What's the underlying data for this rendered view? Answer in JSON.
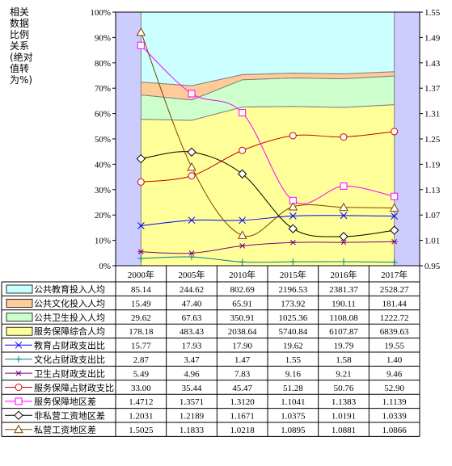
{
  "ylabel_left": "相关数据比例关系(绝对值转为%)",
  "chart_data": {
    "type": "area",
    "categories": [
      "2000年",
      "2005年",
      "2010年",
      "2015年",
      "2016年",
      "2017年"
    ],
    "left_axis": {
      "ticks": [
        "0%",
        "10%",
        "20%",
        "30%",
        "40%",
        "50%",
        "60%",
        "70%",
        "80%",
        "90%",
        "100%"
      ],
      "ylim": [
        0,
        100
      ]
    },
    "right_axis": {
      "ticks": [
        "0.95",
        "1.01",
        "1.07",
        "1.13",
        "1.19",
        "1.25",
        "1.31",
        "1.37",
        "1.43",
        "1.49",
        "1.55"
      ],
      "ylim": [
        0.95,
        1.55
      ]
    },
    "stacked_series": [
      {
        "name": "公共教育投入人均",
        "values": [
          85.14,
          244.62,
          802.69,
          2196.53,
          2381.37,
          2528.27
        ],
        "color": "#ccffff",
        "display": [
          "85.14",
          "244.62",
          "802.69",
          "2196.53",
          "2381.37",
          "2528.27"
        ]
      },
      {
        "name": "公共文化投入人均",
        "values": [
          15.49,
          47.4,
          65.91,
          173.92,
          190.11,
          181.44
        ],
        "color": "#ffcc99",
        "display": [
          "15.49",
          "47.40",
          "65.91",
          "173.92",
          "190.11",
          "181.44"
        ]
      },
      {
        "name": "公共卫生投入人均",
        "values": [
          29.62,
          67.63,
          350.91,
          1025.36,
          1108.08,
          1222.72
        ],
        "color": "#ccffcc",
        "display": [
          "29.62",
          "67.63",
          "350.91",
          "1025.36",
          "1108.08",
          "1222.72"
        ]
      },
      {
        "name": "服务保障综合人均",
        "values": [
          178.18,
          483.43,
          2038.64,
          5740.84,
          6107.87,
          6839.63
        ],
        "color": "#ffff99",
        "display": [
          "178.18",
          "483.43",
          "2038.64",
          "5740.84",
          "6107.87",
          "6839.63"
        ]
      }
    ],
    "line_series": [
      {
        "name": "教育占财政支出比",
        "values": [
          15.77,
          17.93,
          17.9,
          19.62,
          19.79,
          19.55
        ],
        "axis": "left",
        "color": "#0000ff",
        "marker": "x",
        "display": [
          "15.77",
          "17.93",
          "17.90",
          "19.62",
          "19.79",
          "19.55"
        ]
      },
      {
        "name": "文化占财政支出比",
        "values": [
          2.87,
          3.47,
          1.47,
          1.55,
          1.58,
          1.4
        ],
        "axis": "left",
        "color": "#008080",
        "marker": "plus",
        "display": [
          "2.87",
          "3.47",
          "1.47",
          "1.55",
          "1.58",
          "1.40"
        ]
      },
      {
        "name": "卫生占财政支出比",
        "values": [
          5.49,
          4.96,
          7.83,
          9.16,
          9.21,
          9.46
        ],
        "axis": "left",
        "color": "#800080",
        "marker": "star",
        "display": [
          "5.49",
          "4.96",
          "7.83",
          "9.16",
          "9.21",
          "9.46"
        ]
      },
      {
        "name": "服务保障占财政支比",
        "values": [
          33.0,
          35.44,
          45.47,
          51.28,
          50.76,
          52.9
        ],
        "axis": "left",
        "color": "#cc0000",
        "marker": "circle",
        "display": [
          "33.00",
          "35.44",
          "45.47",
          "51.28",
          "50.76",
          "52.90"
        ]
      },
      {
        "name": "服务保障地区差",
        "values": [
          1.4712,
          1.3571,
          1.312,
          1.1041,
          1.1383,
          1.1139
        ],
        "axis": "right",
        "color": "#ff00ff",
        "marker": "square",
        "display": [
          "1.4712",
          "1.3571",
          "1.3120",
          "1.1041",
          "1.1383",
          "1.1139"
        ]
      },
      {
        "name": "非私营工资地区差",
        "values": [
          1.2031,
          1.2189,
          1.1671,
          1.0375,
          1.0191,
          1.0339
        ],
        "axis": "right",
        "color": "#000000",
        "marker": "diamond",
        "display": [
          "1.2031",
          "1.2189",
          "1.1671",
          "1.0375",
          "1.0191",
          "1.0339"
        ]
      },
      {
        "name": "私营工资地区差",
        "values": [
          1.5025,
          1.1833,
          1.0218,
          1.0895,
          1.0881,
          1.0866
        ],
        "axis": "right",
        "color": "#804000",
        "marker": "triangle",
        "display": [
          "1.5025",
          "1.1833",
          "1.0218",
          "1.0895",
          "1.0881",
          "1.0866"
        ]
      }
    ],
    "grid": false,
    "legend": "data-table"
  }
}
